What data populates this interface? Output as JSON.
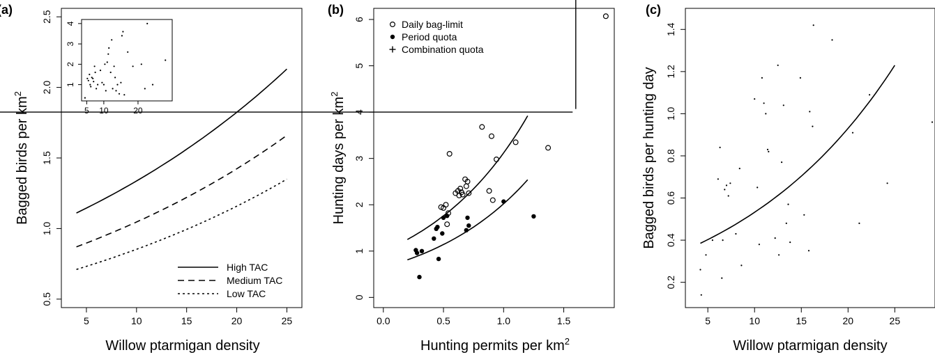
{
  "chart_data": [
    {
      "panel": "(a)",
      "type": "line",
      "xlabel": "Willow ptarmigan density",
      "ylabel": "Bagged birds per km",
      "ylabel_sup": "2",
      "xlim": [
        2.5,
        26.5
      ],
      "ylim": [
        0.44,
        2.56
      ],
      "xticks": [
        5,
        10,
        15,
        20,
        25
      ],
      "yticks": [
        0.5,
        1.0,
        1.5,
        2.0,
        2.5
      ],
      "ytick_labels": [
        "0.5",
        "1.0",
        "1.5",
        "2.0",
        "2.5"
      ],
      "legend_position": "bottom-right",
      "series": [
        {
          "name": "High TAC",
          "style": "solid",
          "x": [
            4,
            25
          ],
          "y_start": 1.11,
          "y_end": 2.13
        },
        {
          "name": "Medium TAC",
          "style": "dashed",
          "x": [
            4,
            25
          ],
          "y_start": 0.87,
          "y_end": 1.66
        },
        {
          "name": "Low TAC",
          "style": "dotted",
          "x": [
            4,
            25
          ],
          "y_start": 0.71,
          "y_end": 1.35
        }
      ],
      "inset": {
        "type": "scatter",
        "xlim": [
          3.5,
          30
        ],
        "ylim": [
          0.2,
          4.2
        ],
        "xticks": [
          5,
          10,
          20
        ],
        "yticks": [
          1,
          2,
          3,
          4
        ],
        "points": [
          [
            4.5,
            0.35
          ],
          [
            5.2,
            1.3
          ],
          [
            5.5,
            1.2
          ],
          [
            5.8,
            1.5
          ],
          [
            6.0,
            1.0
          ],
          [
            6.2,
            0.9
          ],
          [
            6.5,
            1.35
          ],
          [
            6.8,
            1.3
          ],
          [
            7.0,
            1.15
          ],
          [
            7.3,
            1.9
          ],
          [
            7.5,
            1.6
          ],
          [
            7.8,
            0.8
          ],
          [
            8.2,
            1.0
          ],
          [
            9.0,
            1.7
          ],
          [
            9.5,
            1.1
          ],
          [
            10.0,
            1.0
          ],
          [
            10.3,
            2.0
          ],
          [
            10.6,
            0.7
          ],
          [
            11.0,
            2.1
          ],
          [
            11.3,
            2.5
          ],
          [
            11.5,
            2.8
          ],
          [
            12.0,
            1.6
          ],
          [
            12.3,
            3.2
          ],
          [
            12.6,
            0.8
          ],
          [
            13.0,
            1.9
          ],
          [
            13.3,
            1.35
          ],
          [
            13.6,
            0.7
          ],
          [
            14.0,
            1.0
          ],
          [
            14.5,
            0.55
          ],
          [
            15.0,
            1.1
          ],
          [
            15.3,
            3.4
          ],
          [
            15.6,
            3.6
          ],
          [
            16.0,
            0.5
          ],
          [
            17.0,
            2.6
          ],
          [
            18.5,
            1.9
          ],
          [
            21.0,
            2.0
          ],
          [
            22.0,
            0.8
          ],
          [
            22.7,
            4.0
          ],
          [
            24.3,
            1.0
          ],
          [
            28.0,
            2.2
          ]
        ]
      }
    },
    {
      "panel": "(b)",
      "type": "scatter",
      "xlabel": "Hunting permits per km",
      "xlabel_sup": "2",
      "ylabel": "Hunting days per km",
      "ylabel_sup": "2",
      "xlim": [
        -0.08,
        1.92
      ],
      "ylim": [
        -0.22,
        6.24
      ],
      "xticks": [
        0.0,
        0.5,
        1.0,
        1.5
      ],
      "xtick_labels": [
        "0.0",
        "0.5",
        "1.0",
        "1.5"
      ],
      "yticks": [
        0,
        1,
        2,
        3,
        4,
        5,
        6
      ],
      "legend_position": "top-left",
      "series": [
        {
          "name": "Daily bag-limit",
          "marker": "open-circle",
          "points": [
            [
              0.48,
              1.95
            ],
            [
              0.5,
              1.93
            ],
            [
              0.52,
              2.0
            ],
            [
              0.53,
              1.58
            ],
            [
              0.54,
              1.82
            ],
            [
              0.55,
              3.1
            ],
            [
              0.6,
              2.25
            ],
            [
              0.62,
              2.3
            ],
            [
              0.63,
              2.2
            ],
            [
              0.64,
              2.35
            ],
            [
              0.65,
              2.27
            ],
            [
              0.66,
              2.22
            ],
            [
              0.68,
              2.55
            ],
            [
              0.69,
              2.4
            ],
            [
              0.7,
              2.5
            ],
            [
              0.71,
              2.25
            ],
            [
              0.82,
              3.68
            ],
            [
              0.88,
              2.3
            ],
            [
              0.9,
              3.48
            ],
            [
              0.91,
              2.1
            ],
            [
              0.94,
              2.98
            ],
            [
              1.1,
              3.35
            ],
            [
              1.37,
              3.23
            ],
            [
              1.85,
              6.07
            ]
          ]
        },
        {
          "name": "Period quota",
          "marker": "filled-circle",
          "points": [
            [
              0.27,
              1.02
            ],
            [
              0.28,
              0.96
            ],
            [
              0.3,
              0.44
            ],
            [
              0.32,
              1.0
            ],
            [
              0.42,
              1.27
            ],
            [
              0.44,
              1.48
            ],
            [
              0.45,
              1.52
            ],
            [
              0.46,
              0.83
            ],
            [
              0.49,
              1.38
            ],
            [
              0.5,
              1.72
            ],
            [
              0.53,
              1.76
            ],
            [
              0.69,
              1.45
            ],
            [
              0.7,
              1.72
            ],
            [
              0.71,
              1.55
            ],
            [
              1.0,
              2.07
            ],
            [
              1.25,
              1.75
            ]
          ]
        },
        {
          "name": "Combination quota",
          "marker": "plus",
          "points": [
            [
              1.6,
              4.0
            ]
          ]
        }
      ],
      "curves": [
        {
          "x_range": [
            0.2,
            1.2
          ],
          "y_start": 1.25,
          "y_end": 3.92
        },
        {
          "x_range": [
            0.2,
            1.2
          ],
          "y_start": 0.81,
          "y_end": 2.54
        }
      ]
    },
    {
      "panel": "(c)",
      "type": "scatter",
      "xlabel": "Willow ptarmigan density",
      "ylabel": "Bagged birds per hunting day",
      "xlim": [
        2.6,
        29.3
      ],
      "ylim": [
        0.08,
        1.5
      ],
      "xticks": [
        5,
        10,
        15,
        20,
        25
      ],
      "yticks": [
        0.2,
        0.4,
        0.6,
        0.8,
        1.0,
        1.2,
        1.4
      ],
      "ytick_labels": [
        "0.2",
        "0.4",
        "0.6",
        "0.8",
        "1.0",
        "1.2",
        "1.4"
      ],
      "points": [
        [
          4.2,
          0.26
        ],
        [
          4.3,
          0.14
        ],
        [
          4.8,
          0.33
        ],
        [
          5.5,
          0.4
        ],
        [
          6.1,
          0.69
        ],
        [
          6.3,
          0.84
        ],
        [
          6.5,
          0.22
        ],
        [
          6.6,
          0.4
        ],
        [
          6.8,
          0.64
        ],
        [
          7.0,
          0.66
        ],
        [
          7.2,
          0.61
        ],
        [
          7.4,
          0.67
        ],
        [
          8.0,
          0.43
        ],
        [
          8.4,
          0.74
        ],
        [
          8.6,
          0.28
        ],
        [
          10.0,
          1.07
        ],
        [
          10.3,
          0.65
        ],
        [
          10.5,
          0.38
        ],
        [
          10.8,
          1.17
        ],
        [
          11.0,
          1.05
        ],
        [
          11.2,
          1.0
        ],
        [
          11.4,
          0.83
        ],
        [
          11.5,
          0.82
        ],
        [
          12.2,
          0.41
        ],
        [
          12.5,
          1.23
        ],
        [
          12.6,
          0.33
        ],
        [
          12.9,
          0.77
        ],
        [
          13.1,
          1.04
        ],
        [
          13.4,
          0.48
        ],
        [
          13.6,
          0.57
        ],
        [
          13.8,
          0.39
        ],
        [
          14.9,
          1.17
        ],
        [
          15.3,
          0.52
        ],
        [
          15.8,
          0.35
        ],
        [
          15.9,
          1.01
        ],
        [
          16.2,
          0.94
        ],
        [
          16.3,
          1.42
        ],
        [
          18.3,
          1.35
        ],
        [
          20.5,
          0.91
        ],
        [
          21.2,
          0.48
        ],
        [
          22.3,
          1.09
        ],
        [
          24.2,
          0.67
        ],
        [
          29.0,
          0.96
        ]
      ],
      "curve": {
        "x_range": [
          4.2,
          25
        ],
        "y_start": 0.385,
        "y_end": 1.23
      }
    }
  ]
}
